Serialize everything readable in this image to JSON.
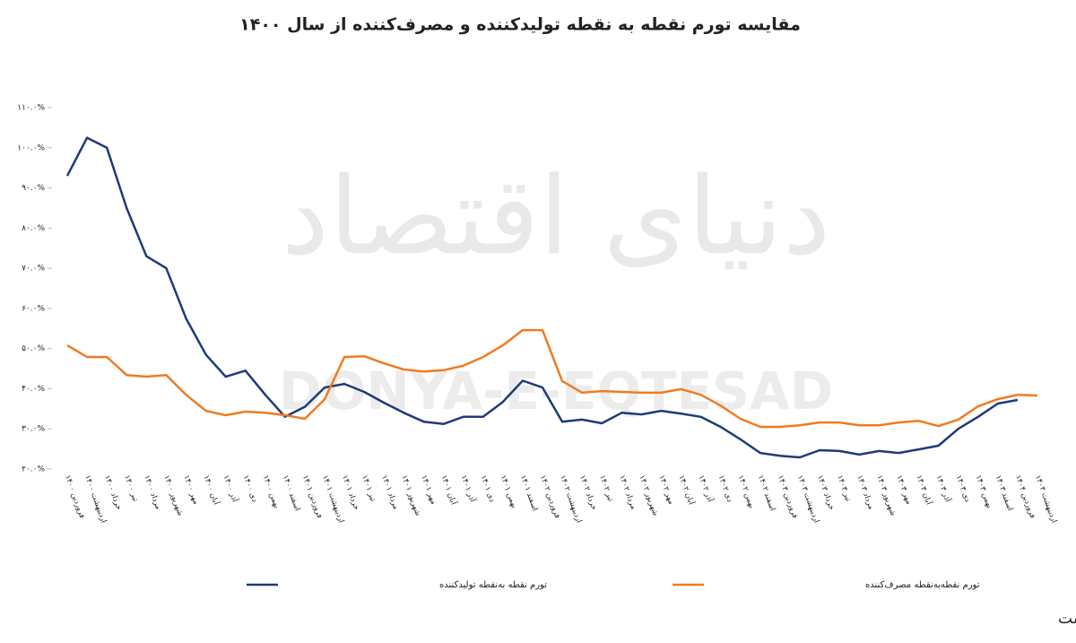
{
  "chart_data": {
    "type": "line",
    "title": "مقایسه تورم نقطه به نقطه تولیدکننده و مصرف‌کننده از سال ۱۴۰۰",
    "watermark": "دنیای اقتصاد",
    "watermark_latin": "DONYA-E-EQTESAD",
    "note": "تورم تولیدکننده بر اساس آمارهای بانک مرکزی و تورم مصرف کننده بر اساس آمار اعلامی مرکز آمار است",
    "categories": [
      "فروردین ۱۴۰۰",
      "اردیبهشت ۱۴۰۰",
      "خرداد ۱۴۰۰",
      "تیر ۱۴۰۰",
      "مرداد ۱۴۰۰",
      "شهریور ۱۴۰۰",
      "مهر ۱۴۰۰",
      "آبان ۱۴۰۰",
      "آذر ۱۴۰۰",
      "دی ۱۴۰۰",
      "بهمن ۱۴۰۰",
      "اسفند ۱۴۰۰",
      "فروردین ۱۴۰۱",
      "اردیبهشت ۱۴۰۱",
      "خرداد ۱۴۰۱",
      "تیر ۱۴۰۱",
      "مرداد ۱۴۰۱",
      "شهریور ۱۴۰۱",
      "مهر ۱۴۰۱",
      "آبان ۱۴۰۱",
      "آذر ۱۴۰۱",
      "دی ۱۴۰۱",
      "بهمن ۱۴۰۱",
      "اسفند ۱۴۰۱",
      "فروردین ۱۴۰۲",
      "اردیبهشت ۱۴۰۲",
      "خرداد ۱۴۰۲",
      "تیر ۱۴۰۲",
      "مرداد ۱۴۰۲",
      "شهریور ۱۴۰۲",
      "مهر ۱۴۰۲",
      "آبان ۱۴۰۲",
      "آذر ۱۴۰۲",
      "دی ۱۴۰۲",
      "بهمن ۱۴۰۲",
      "اسفند ۱۴۰۲",
      "فروردین ۱۴۰۳",
      "اردیبهشت ۱۴۰۳",
      "خرداد ۱۴۰۳",
      "تیر ۱۴۰۳",
      "مرداد ۱۴۰۳",
      "شهریور ۱۴۰۳",
      "مهر ۱۴۰۳",
      "آبان ۱۴۰۳",
      "آذر ۱۴۰۳",
      "دی ۱۴۰۳",
      "بهمن ۱۴۰۳",
      "اسفند ۱۴۰۳",
      "فروردین ۱۴۰۴",
      "اردیبهشت ۱۴۰۴"
    ],
    "series": [
      {
        "name": "تورم نقطه به‌نقطه تولیدکننده",
        "color": "#1f3a7a",
        "values": [
          93,
          102.5,
          100,
          85,
          73,
          70,
          57.5,
          48.5,
          43,
          44.5,
          38.5,
          33,
          35.5,
          40.3,
          41.2,
          39.2,
          36.5,
          34,
          31.8,
          31.2,
          33,
          33,
          36.7,
          42,
          40.3,
          31.8,
          32.3,
          31.4,
          34,
          33.6,
          34.5,
          33.8,
          33,
          30.5,
          27.4,
          24,
          23.3,
          22.9,
          24.7,
          24.5,
          23.6,
          24.5,
          24,
          24.9,
          25.8,
          30,
          33,
          36.3,
          37.2,
          null
        ]
      },
      {
        "name": "تورم نقطه‌به‌نقطه مصرف‌کننده",
        "color": "#f07b22",
        "values": [
          50.8,
          47.9,
          47.9,
          43.4,
          43,
          43.4,
          38.5,
          34.5,
          33.4,
          34.3,
          34,
          33.4,
          32.5,
          37.4,
          47.9,
          48.1,
          46.3,
          44.8,
          44.3,
          44.6,
          45.7,
          47.9,
          50.8,
          54.6,
          54.6,
          41.9,
          39,
          39.4,
          39.2,
          39,
          39,
          39.9,
          38.5,
          35.8,
          32.5,
          30.5,
          30.5,
          30.9,
          31.6,
          31.6,
          30.9,
          30.9,
          31.6,
          32,
          30.7,
          32.3,
          35.6,
          37.4,
          38.5,
          38.3
        ]
      }
    ],
    "ylim": [
      20,
      110
    ],
    "yticks": [
      {
        "value": 20,
        "label": "۲۰.۰%"
      },
      {
        "value": 30,
        "label": "۳۰.۰%"
      },
      {
        "value": 40,
        "label": "۴۰.۰%"
      },
      {
        "value": 50,
        "label": "۵۰.۰%"
      },
      {
        "value": 60,
        "label": "۶۰.۰%"
      },
      {
        "value": 70,
        "label": "۷۰.۰%"
      },
      {
        "value": 80,
        "label": "۸۰.۰%"
      },
      {
        "value": 90,
        "label": "۹۰.۰%"
      },
      {
        "value": 100,
        "label": "۱۰۰.۰%"
      },
      {
        "value": 110,
        "label": "۱۱۰.۰%"
      }
    ],
    "grid": false
  }
}
